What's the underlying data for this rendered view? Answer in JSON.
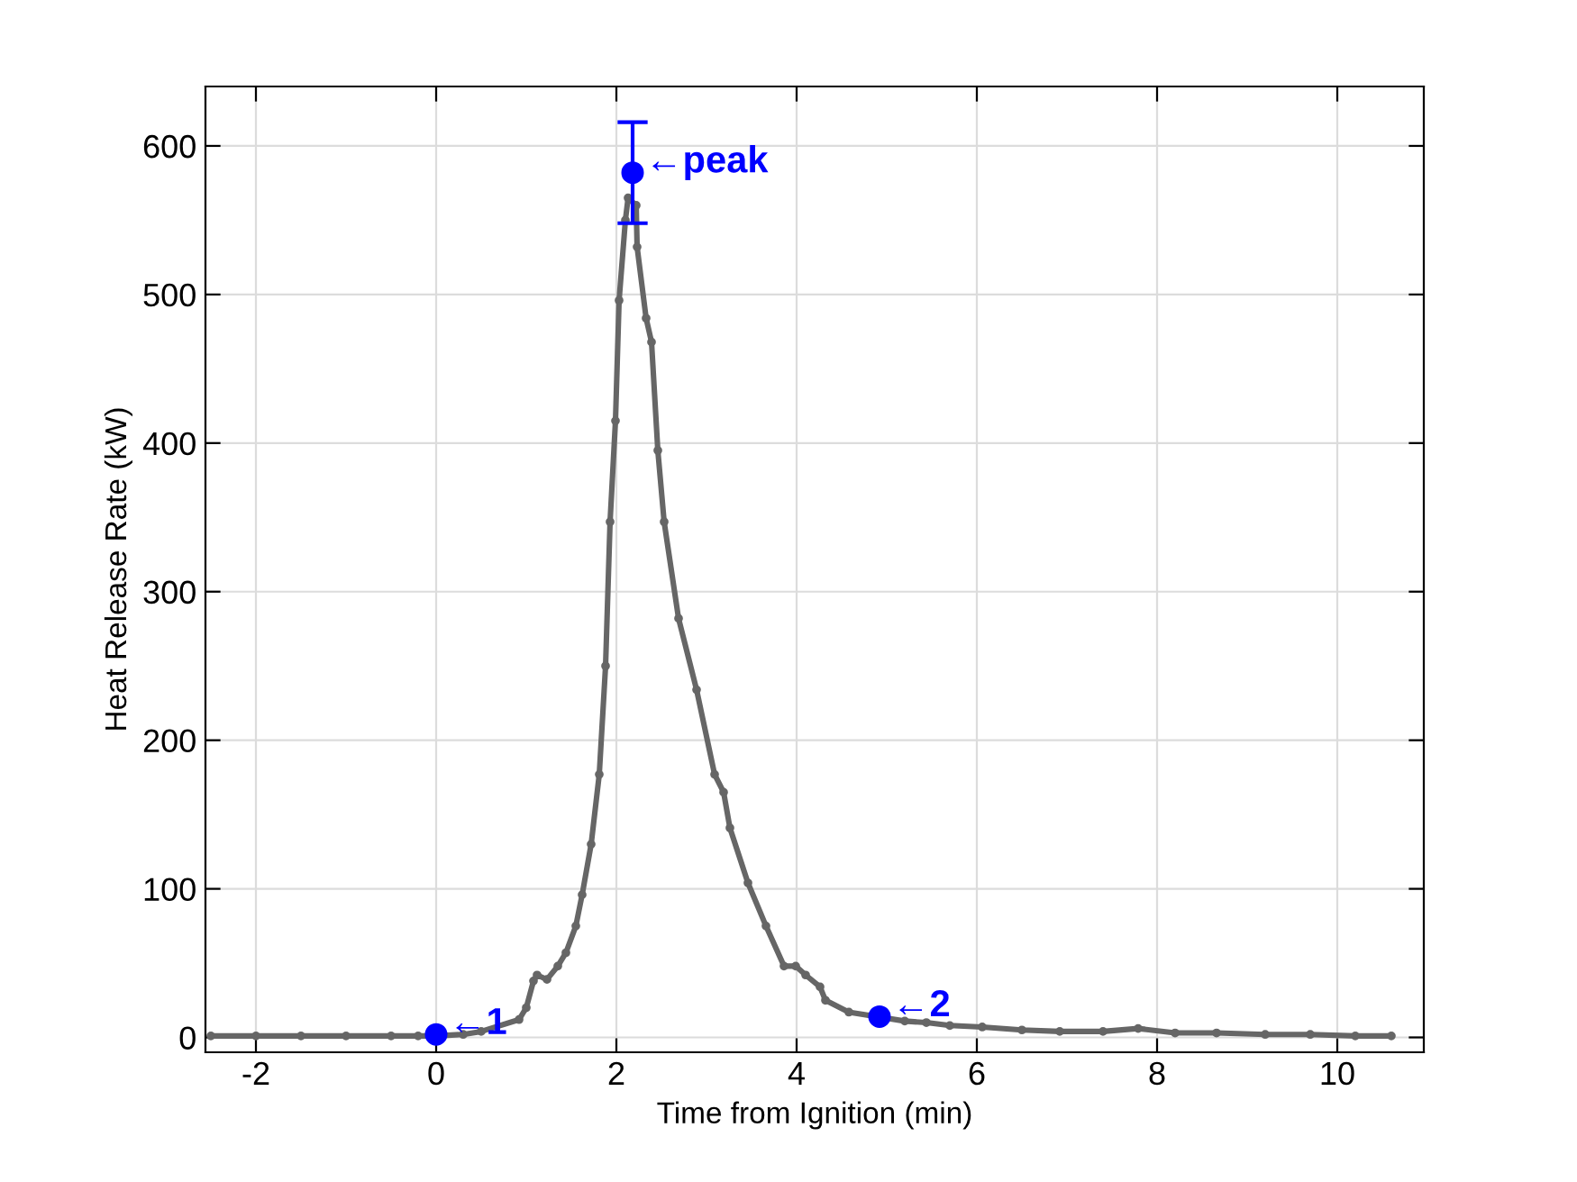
{
  "chart_data": {
    "type": "line",
    "xlabel": "Time from Ignition (min)",
    "ylabel": "Heat Release Rate (kW)",
    "xlim": [
      -2.56,
      10.96
    ],
    "ylim": [
      -10,
      640
    ],
    "xticks": [
      -2,
      0,
      2,
      4,
      6,
      8,
      10
    ],
    "yticks": [
      0,
      100,
      200,
      300,
      400,
      500,
      600
    ],
    "grid": true,
    "marker": "circle",
    "line_style": "solid",
    "series": [
      {
        "color": "#666666",
        "x": [
          -2.5,
          -2,
          -1.5,
          -1,
          -0.5,
          -0.2,
          0,
          0.3,
          0.5,
          0.92,
          1.0,
          1.08,
          1.12,
          1.23,
          1.35,
          1.44,
          1.55,
          1.62,
          1.72,
          1.81,
          1.88,
          1.93,
          1.99,
          2.03,
          2.1,
          2.13,
          2.22,
          2.23,
          2.33,
          2.39,
          2.46,
          2.53,
          2.69,
          2.89,
          3.09,
          3.19,
          3.26,
          3.46,
          3.66,
          3.86,
          3.99,
          4.1,
          4.26,
          4.32,
          4.58,
          5.2,
          5.44,
          5.7,
          6.06,
          6.5,
          6.92,
          7.4,
          7.79,
          8.2,
          8.66,
          9.2,
          9.7,
          10.2,
          10.6
        ],
        "values": [
          1,
          1,
          1,
          1,
          1,
          1,
          1,
          2,
          4,
          12,
          20,
          38,
          42,
          39,
          48,
          57,
          75,
          96,
          130,
          177,
          250,
          347,
          415,
          496,
          550,
          565,
          560,
          532,
          484,
          468,
          395,
          347,
          282,
          234,
          177,
          165,
          141,
          104,
          75,
          48,
          48,
          42,
          34,
          25,
          17,
          11,
          10,
          8,
          7,
          5,
          4,
          4,
          6,
          3,
          3,
          2,
          2,
          1,
          1
        ]
      },
      {
        "type": "scatter",
        "color": "#0000ff",
        "x": [
          0,
          4.92,
          2.18
        ],
        "values": [
          2,
          14,
          582
        ],
        "errors": [
          null,
          null,
          34
        ]
      }
    ],
    "annotations": [
      {
        "text": "←1",
        "x": 0,
        "y": 2
      },
      {
        "text": "←2",
        "x": 4.92,
        "y": 14
      },
      {
        "text": "←peak",
        "x": 2.18,
        "y": 582
      }
    ]
  }
}
